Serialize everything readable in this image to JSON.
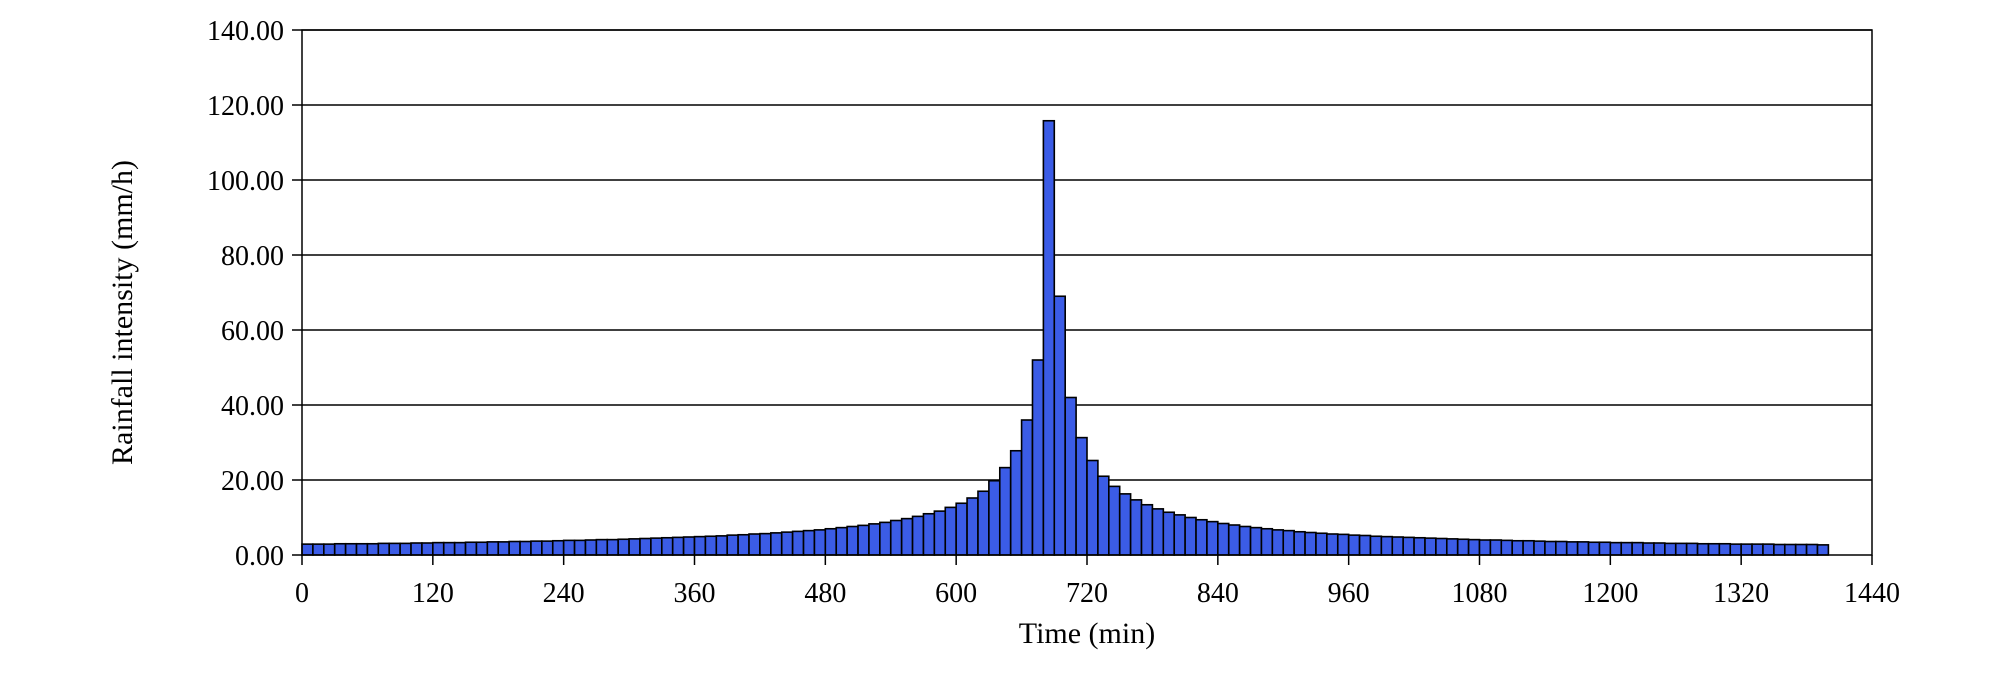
{
  "chart_data": {
    "type": "bar",
    "xlabel": "Time (min)",
    "ylabel": "Rainfall intensity (mm/h)",
    "ylim": [
      0,
      140
    ],
    "xlim": [
      0,
      1440
    ],
    "y_ticks": [
      "0.00",
      "20.00",
      "40.00",
      "60.00",
      "80.00",
      "100.00",
      "120.00",
      "140.00"
    ],
    "x_ticks": [
      "0",
      "120",
      "240",
      "360",
      "480",
      "600",
      "720",
      "840",
      "960",
      "1080",
      "1200",
      "1320",
      "1440"
    ],
    "bar_interval_min": 10,
    "grid": "horizontal",
    "legend": "none",
    "bar_color": "#3b5ce6",
    "bar_edge_color": "#000000",
    "series": [
      {
        "values": [
          2.9,
          2.9,
          2.9,
          3.0,
          3.0,
          3.0,
          3.0,
          3.1,
          3.1,
          3.1,
          3.2,
          3.2,
          3.3,
          3.3,
          3.3,
          3.4,
          3.4,
          3.5,
          3.5,
          3.6,
          3.6,
          3.7,
          3.7,
          3.8,
          3.9,
          3.9,
          4.0,
          4.1,
          4.1,
          4.2,
          4.3,
          4.4,
          4.5,
          4.6,
          4.7,
          4.8,
          4.9,
          5.0,
          5.1,
          5.3,
          5.4,
          5.6,
          5.7,
          5.9,
          6.1,
          6.3,
          6.5,
          6.7,
          7.0,
          7.3,
          7.6,
          7.9,
          8.3,
          8.7,
          9.2,
          9.7,
          10.3,
          11.0,
          11.7,
          12.7,
          13.8,
          15.2,
          17.0,
          19.8,
          23.3,
          27.8,
          36.0,
          52.0,
          115.8,
          69.0,
          42.0,
          31.3,
          25.2,
          21.0,
          18.3,
          16.3,
          14.7,
          13.4,
          12.3,
          11.4,
          10.7,
          10.0,
          9.4,
          8.9,
          8.4,
          8.0,
          7.6,
          7.3,
          7.0,
          6.7,
          6.5,
          6.2,
          6.0,
          5.8,
          5.6,
          5.5,
          5.3,
          5.2,
          5.0,
          4.9,
          4.8,
          4.7,
          4.6,
          4.5,
          4.4,
          4.3,
          4.2,
          4.1,
          4.0,
          4.0,
          3.9,
          3.8,
          3.8,
          3.7,
          3.6,
          3.6,
          3.5,
          3.5,
          3.4,
          3.4,
          3.3,
          3.3,
          3.3,
          3.2,
          3.2,
          3.1,
          3.1,
          3.1,
          3.0,
          3.0,
          3.0,
          2.9,
          2.9,
          2.9,
          2.9,
          2.8,
          2.8,
          2.8,
          2.8,
          2.7
        ]
      }
    ]
  }
}
